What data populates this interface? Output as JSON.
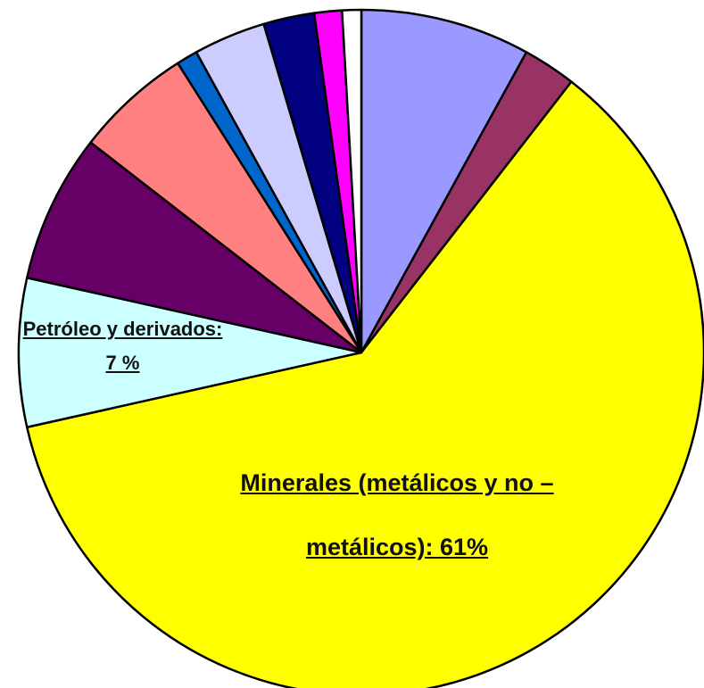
{
  "chart_data": {
    "type": "pie",
    "categories": [
      null,
      null,
      "Minerales (metálicos y no – metálicos):",
      "Petróleo y derivados:",
      null,
      null,
      null,
      null,
      null,
      null,
      null
    ],
    "values": [
      8,
      2.5,
      61,
      7,
      7,
      5.5,
      1,
      3.4,
      2.4,
      1.3,
      0.9
    ],
    "value_labels": [
      null,
      null,
      "61%",
      "7 %",
      null,
      null,
      null,
      null,
      null,
      null,
      null
    ],
    "colors": [
      "#9999ff",
      "#993366",
      "#ffff00",
      "#ccffff",
      "#660066",
      "#ff8080",
      "#0066cc",
      "#ccccff",
      "#000080",
      "#ff00ff",
      "#ffffff"
    ]
  }
}
